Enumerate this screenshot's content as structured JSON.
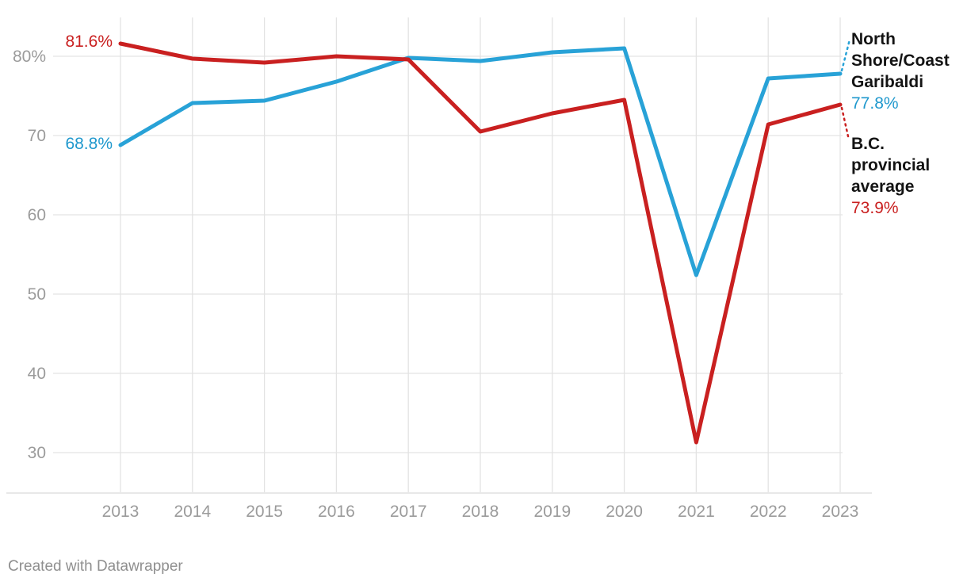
{
  "chart_data": {
    "type": "line",
    "x": [
      2013,
      2014,
      2015,
      2016,
      2017,
      2018,
      2019,
      2020,
      2021,
      2022,
      2023
    ],
    "series": [
      {
        "name": "North Shore/Coast Garibaldi",
        "color": "#28a2d7",
        "values": [
          68.8,
          74.1,
          74.4,
          76.8,
          79.8,
          79.4,
          80.5,
          81.0,
          52.4,
          77.2,
          77.8
        ],
        "start_label": "68.8%",
        "end_label": "77.8%"
      },
      {
        "name": "B.C. provincial average",
        "color": "#c92020",
        "values": [
          81.6,
          79.7,
          79.2,
          80.0,
          79.6,
          70.5,
          72.8,
          74.5,
          31.3,
          71.4,
          73.9
        ],
        "start_label": "81.6%",
        "end_label": "73.9%"
      }
    ],
    "y_ticks": [
      {
        "value": 80,
        "label": "80%"
      },
      {
        "value": 70,
        "label": "70"
      },
      {
        "value": 60,
        "label": "60"
      },
      {
        "value": 50,
        "label": "50"
      },
      {
        "value": 40,
        "label": "40"
      },
      {
        "value": 30,
        "label": "30"
      }
    ],
    "title": "",
    "xlabel": "",
    "ylabel": "",
    "ylim": [
      25,
      85
    ],
    "grid": true,
    "legend_position": "right"
  },
  "annotations": {
    "red_start": "81.6%",
    "blue_start": "68.8%",
    "legend": [
      {
        "name": "North Shore/Coast Garibaldi",
        "value": "77.8%"
      },
      {
        "name": "B.C. provincial average",
        "value": "73.9%"
      }
    ]
  },
  "colors": {
    "blue_line": "#28a2d7",
    "red_line": "#c92020",
    "grid": "#e3e3e3",
    "baseline": "#d9d9d9",
    "axis_text": "#9b9b9b",
    "legend_text": "#141414",
    "footer_text": "#8f8f8f"
  },
  "footer": {
    "credit": "Created with Datawrapper"
  }
}
